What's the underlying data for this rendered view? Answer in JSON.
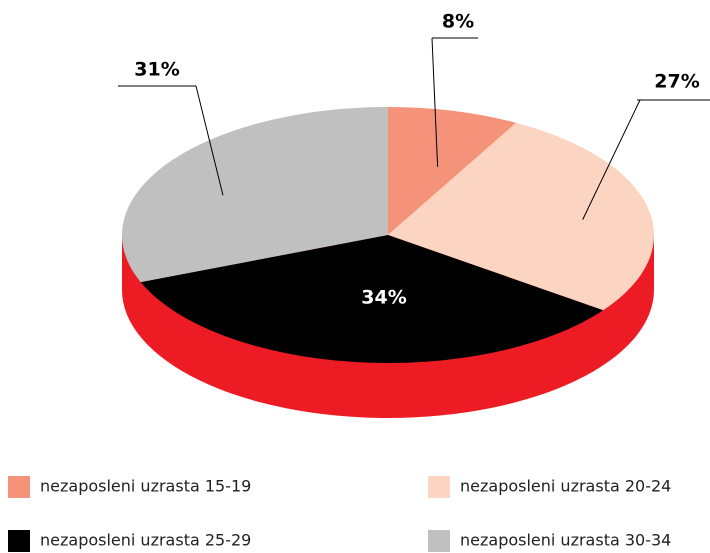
{
  "chart_data": {
    "type": "pie",
    "categories": [
      "nezaposleni uzrasta 15-19",
      "nezaposleni uzrasta 20-24",
      "nezaposleni uzrasta 25-29",
      "nezaposleni uzrasta 30-34"
    ],
    "values": [
      8,
      27,
      34,
      31
    ],
    "value_labels": [
      "8%",
      "27%",
      "34%",
      "31%"
    ],
    "colors": [
      "#f4937a",
      "#fcd5c2",
      "#000000",
      "#c0c0c0"
    ],
    "depth_color": "#ed1c24"
  }
}
